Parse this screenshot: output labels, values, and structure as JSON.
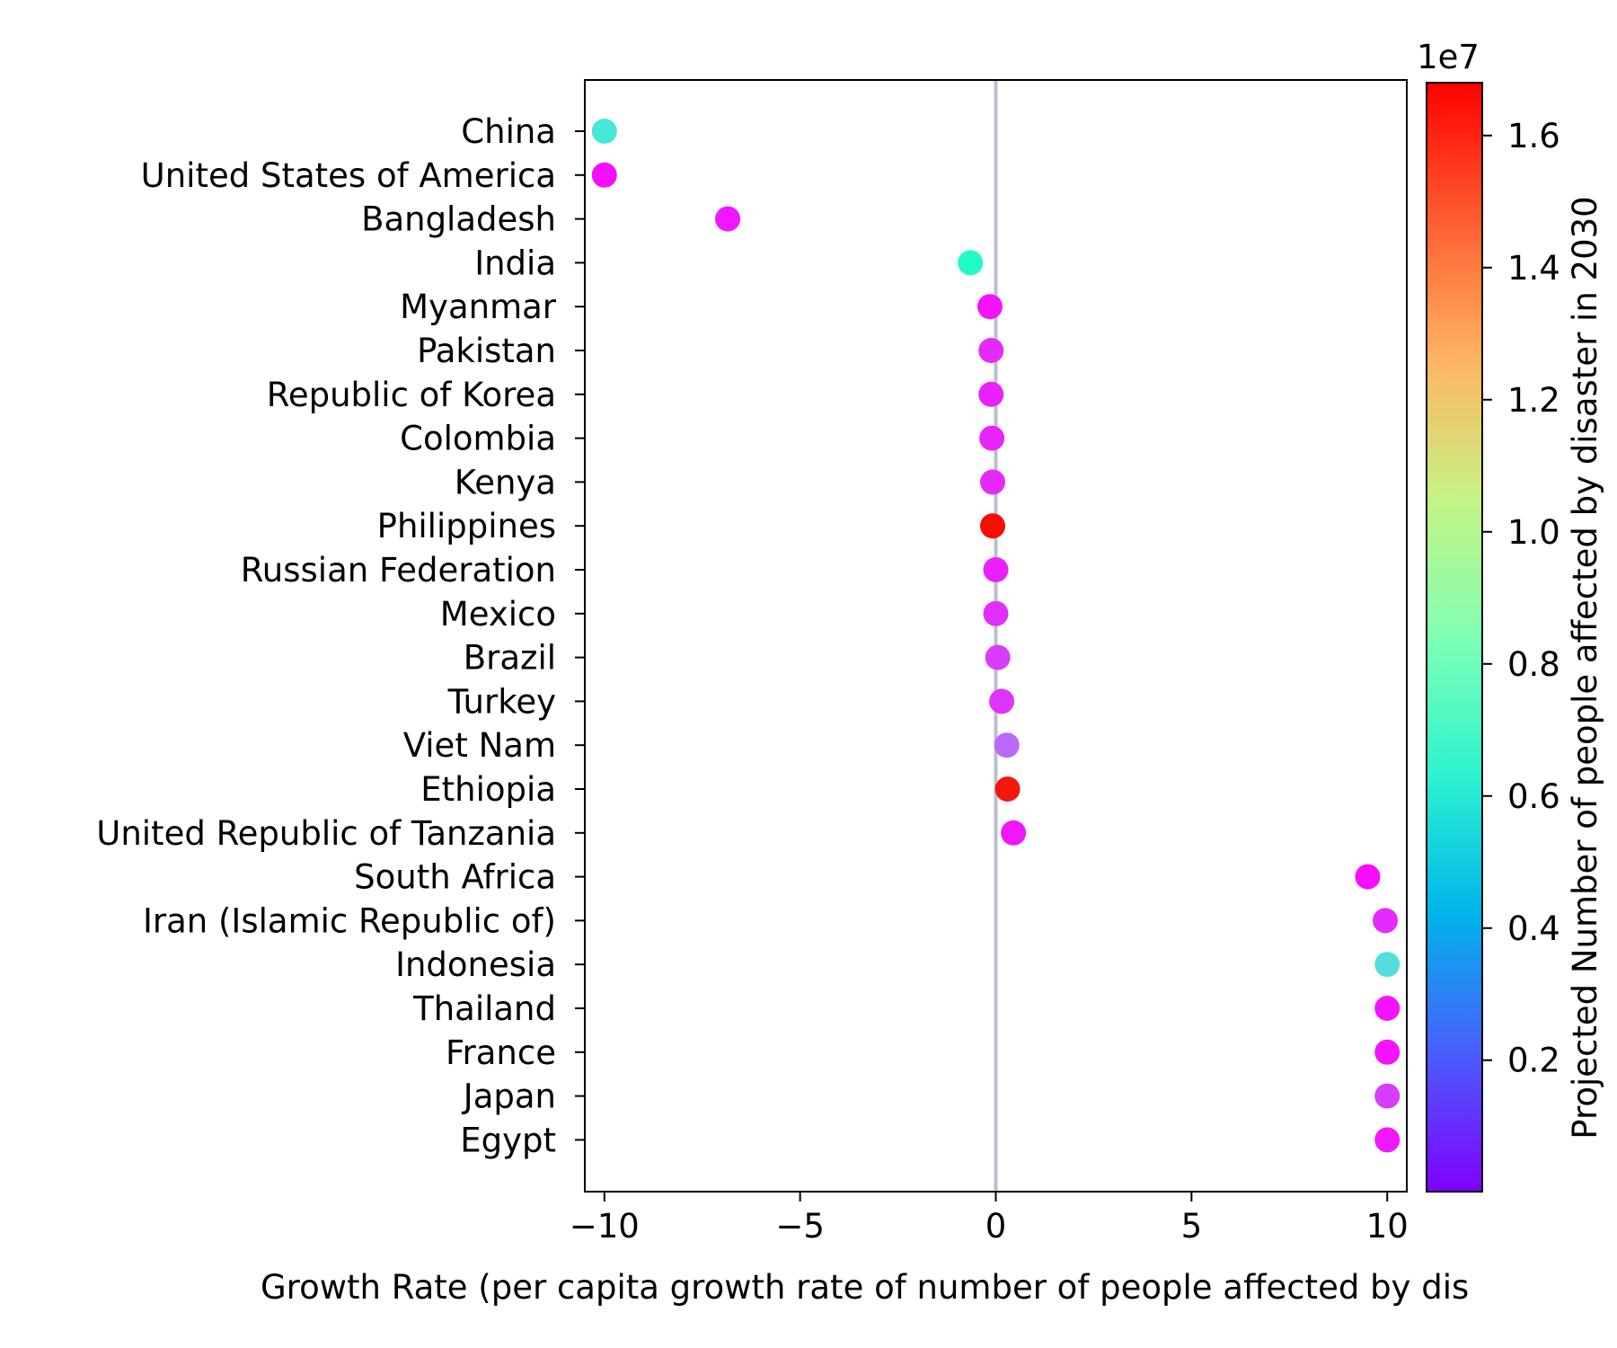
{
  "chart_data": {
    "type": "scatter",
    "title": "",
    "xlabel": "Growth Rate (per capita growth rate of number of people affected by dis",
    "ylabel": "",
    "xlim": [
      -10.5,
      10.5
    ],
    "xticks": [
      -10,
      -5,
      0,
      5,
      10
    ],
    "xtick_labels": [
      "−10",
      "−5",
      "0",
      "5",
      "10"
    ],
    "reference_line_x": 0,
    "reference_line_color": "#b9bfcc",
    "categories": [
      "China",
      "United States of America",
      "Bangladesh",
      "India",
      "Myanmar",
      "Pakistan",
      "Republic of Korea",
      "Colombia",
      "Kenya",
      "Philippines",
      "Russian Federation",
      "Mexico",
      "Brazil",
      "Turkey",
      "Viet Nam",
      "Ethiopia",
      "United Republic of Tanzania",
      "South Africa",
      "Iran (Islamic Republic of)",
      "Indonesia",
      "Thailand",
      "France",
      "Japan",
      "Egypt"
    ],
    "x": [
      -10.0,
      -10.0,
      -6.85,
      -0.65,
      -0.15,
      -0.12,
      -0.12,
      -0.1,
      -0.08,
      -0.08,
      0.0,
      0.0,
      0.05,
      0.15,
      0.28,
      0.3,
      0.45,
      9.5,
      9.95,
      10.0,
      10.0,
      10.0,
      10.0,
      10.0
    ],
    "color_values": [
      6100000,
      300000,
      500000,
      7300000,
      400000,
      900000,
      700000,
      800000,
      900000,
      16500000,
      700000,
      1000000,
      1300000,
      1100000,
      2300000,
      16300000,
      500000,
      300000,
      900000,
      5600000,
      400000,
      400000,
      1300000,
      500000
    ],
    "colorbar": {
      "label": "Projected Number of people affected by disaster in 2030",
      "offset_label": "1e7",
      "min": 0.001,
      "max": 1.68,
      "ticks": [
        0.2,
        0.4,
        0.6,
        0.8,
        1.0,
        1.2,
        1.4,
        1.6
      ],
      "tick_labels": [
        "0.2",
        "0.4",
        "0.6",
        "0.8",
        "1.0",
        "1.2",
        "1.4",
        "1.6"
      ],
      "colormap": "rainbow"
    }
  }
}
